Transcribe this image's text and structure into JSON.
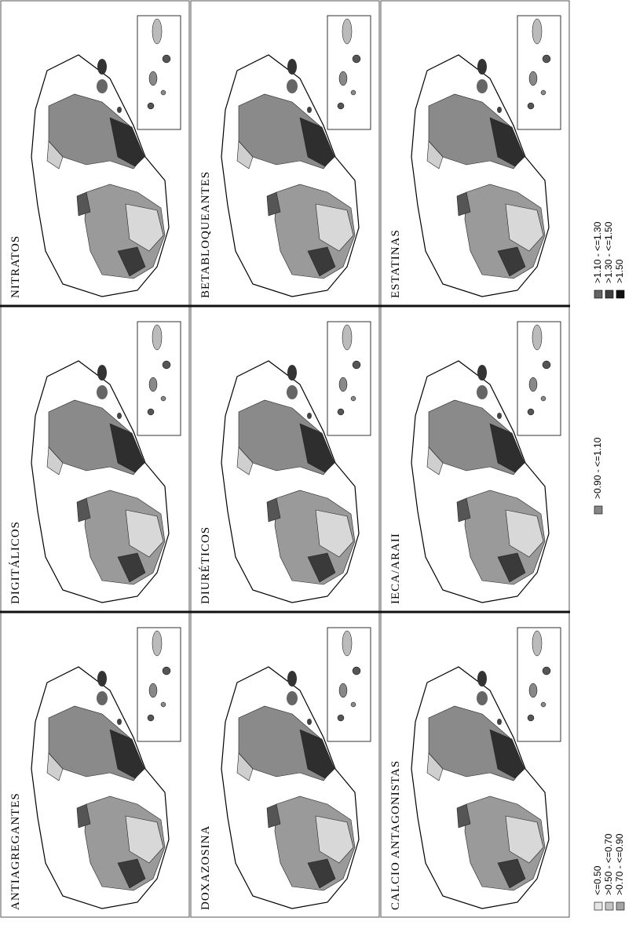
{
  "panels": [
    {
      "title": "NITRATOS"
    },
    {
      "title": "BETABLOQUEANTES"
    },
    {
      "title": "ESTATINAS"
    },
    {
      "title": "DIGITÁLICOS"
    },
    {
      "title": "DIURÉTICOS"
    },
    {
      "title": "IECA/ARAII"
    },
    {
      "title": "ANTIAGREGANTES"
    },
    {
      "title": "DOXAZOSINA"
    },
    {
      "title": "CALCIO ANTAGONISTAS"
    }
  ],
  "legend": [
    {
      "label": "<=0.50",
      "color": "#e6e6e6"
    },
    {
      "label": ">0.50 - <=0.70",
      "color": "#c4c4c4"
    },
    {
      "label": ">0.70 - <=0.90",
      "color": "#a4a4a4"
    },
    {
      "label": ">0.90 - <=1.10",
      "color": "#858585"
    },
    {
      "label": ">1.10 - <=1.30",
      "color": "#636363"
    },
    {
      "label": ">1.30 - <=1.50",
      "color": "#404040"
    },
    {
      "label": ">1.50",
      "color": "#111111"
    }
  ]
}
